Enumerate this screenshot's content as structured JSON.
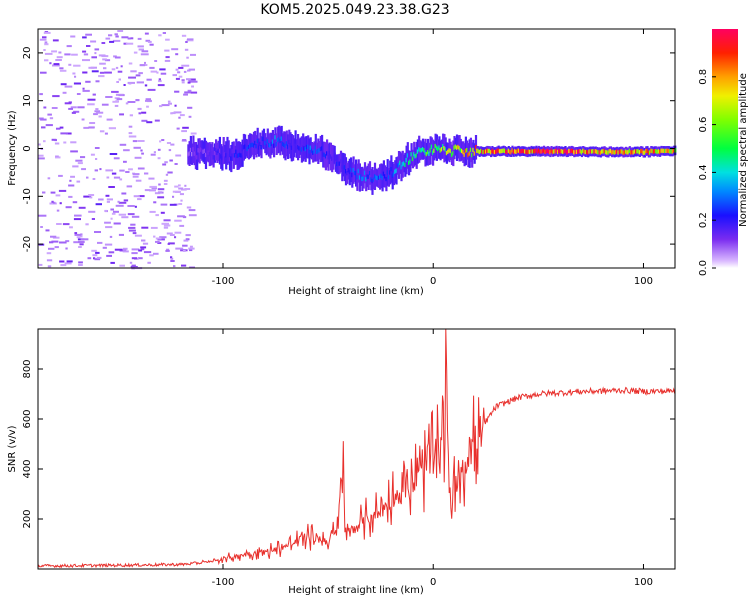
{
  "title": "KOM5.2025.049.23.38.G23",
  "colors": {
    "snr_line": "#e8302c",
    "spectrum_point": "#9b5cf0",
    "spectrum_dark": "#5a1fd6",
    "frame": "#000000"
  },
  "chart_data": [
    {
      "type": "heatmap",
      "title": "KOM5.2025.049.23.38.G23",
      "xlabel": "Height of straight line (km)",
      "ylabel": "Frequency (Hz)",
      "xlim": [
        -188,
        115
      ],
      "ylim": [
        -25,
        25
      ],
      "x_ticks": [
        -100,
        0,
        100
      ],
      "y_ticks": [
        -20,
        -10,
        0,
        10,
        20
      ],
      "colorbar": {
        "label": "Normalized spectral amplitude",
        "range": [
          0,
          1
        ],
        "ticks": [
          "0.0",
          "0.2",
          "0.4",
          "0.6",
          "0.8"
        ],
        "colormap": "rainbow"
      },
      "ridge": {
        "x": [
          -117,
          -105,
          -95,
          -85,
          -75,
          -65,
          -58,
          -50,
          -45,
          -40,
          -35,
          -30,
          -25,
          -20,
          -15,
          -10,
          -5,
          0,
          5,
          10,
          20,
          40,
          60,
          80,
          100,
          115
        ],
        "frequency": [
          -1,
          -1,
          -1.5,
          1,
          1.5,
          0.5,
          -0.5,
          -1,
          -3,
          -5,
          -5.5,
          -6,
          -6,
          -5,
          -3,
          -1.5,
          -0.5,
          -0.3,
          -0.3,
          -0.5,
          -0.6,
          -0.6,
          -0.6,
          -0.7,
          -0.7,
          -0.5
        ],
        "amplitude": [
          0.1,
          0.15,
          0.2,
          0.25,
          0.3,
          0.2,
          0.3,
          0.2,
          0.2,
          0.25,
          0.3,
          0.3,
          0.25,
          0.3,
          0.4,
          0.45,
          0.5,
          0.55,
          0.6,
          0.65,
          0.8,
          0.9,
          0.95,
          0.85,
          0.8,
          0.75
        ]
      },
      "noise_region_x": [
        -188,
        -115
      ]
    },
    {
      "type": "line",
      "xlabel": "Height of straight line (km)",
      "ylabel": "SNR (v/v)",
      "xlim": [
        -188,
        115
      ],
      "ylim": [
        0,
        960
      ],
      "x_ticks": [
        -100,
        0,
        100
      ],
      "y_ticks": [
        200,
        400,
        600,
        800
      ],
      "series": [
        {
          "x": [
            -188,
            -150,
            -120,
            -110,
            -100,
            -90,
            -80,
            -70,
            -60,
            -50,
            -45,
            -43,
            -42,
            -40,
            -35,
            -30,
            -25,
            -20,
            -15,
            -10,
            -5,
            0,
            5,
            6,
            7,
            8,
            10,
            15,
            20,
            25,
            30,
            40,
            50,
            60,
            70,
            80,
            90,
            100,
            115
          ],
          "y": [
            12,
            15,
            18,
            25,
            40,
            60,
            70,
            90,
            130,
            110,
            160,
            530,
            150,
            140,
            180,
            210,
            230,
            280,
            310,
            350,
            390,
            440,
            520,
            960,
            460,
            230,
            360,
            430,
            510,
            590,
            650,
            685,
            700,
            705,
            710,
            712,
            715,
            710,
            712
          ]
        }
      ]
    }
  ]
}
